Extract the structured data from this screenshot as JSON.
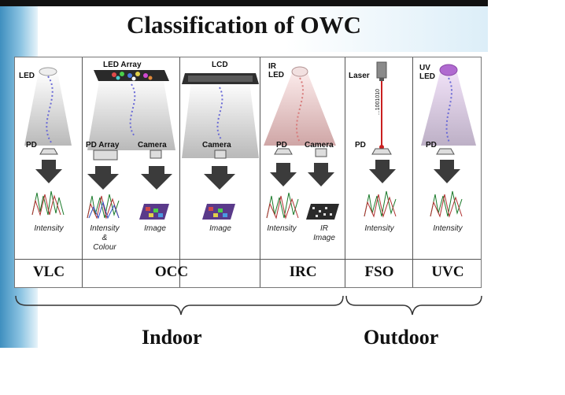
{
  "title": "Classification of OWC",
  "columns": [
    {
      "id": "vlc",
      "source_labels": [
        "LED"
      ],
      "detector_labels": [
        "PD"
      ],
      "data_bits": "1001010",
      "captions": [
        "Intensity"
      ],
      "category": "VLC"
    },
    {
      "id": "occ-array",
      "source_labels": [
        "LED Array"
      ],
      "detector_labels": [
        "PD Array",
        "Camera"
      ],
      "data_bits": "1001010",
      "captions": [
        "Intensity\n&\nColour",
        "Image"
      ],
      "category": "OCC"
    },
    {
      "id": "occ-lcd",
      "source_labels": [
        "LCD"
      ],
      "detector_labels": [
        "Camera"
      ],
      "data_bits": "1001010",
      "captions": [
        "Image"
      ],
      "category": ""
    },
    {
      "id": "irc",
      "source_labels": [
        "IR\nLED"
      ],
      "detector_labels": [
        "PD",
        "Camera"
      ],
      "data_bits": "1001010",
      "captions": [
        "Intensity",
        "IR\nImage"
      ],
      "category": "IRC"
    },
    {
      "id": "fso",
      "source_labels": [
        "Laser"
      ],
      "detector_labels": [
        "PD"
      ],
      "data_bits": "...1001010",
      "captions": [
        "Intensity"
      ],
      "category": "FSO"
    },
    {
      "id": "uvc",
      "source_labels": [
        "UV\nLED"
      ],
      "detector_labels": [
        "PD"
      ],
      "data_bits": "1001010",
      "captions": [
        "Intensity"
      ],
      "category": "UVC"
    }
  ],
  "groups": {
    "indoor": "Indoor",
    "outdoor": "Outdoor"
  },
  "colors": {
    "beam": "#bfbfbf",
    "arrow": "#3b3b3b",
    "dots_blue": "#6a6ad6",
    "ir": "#d77a7a",
    "laser": "#c92020",
    "uv": "#a65ac7"
  }
}
